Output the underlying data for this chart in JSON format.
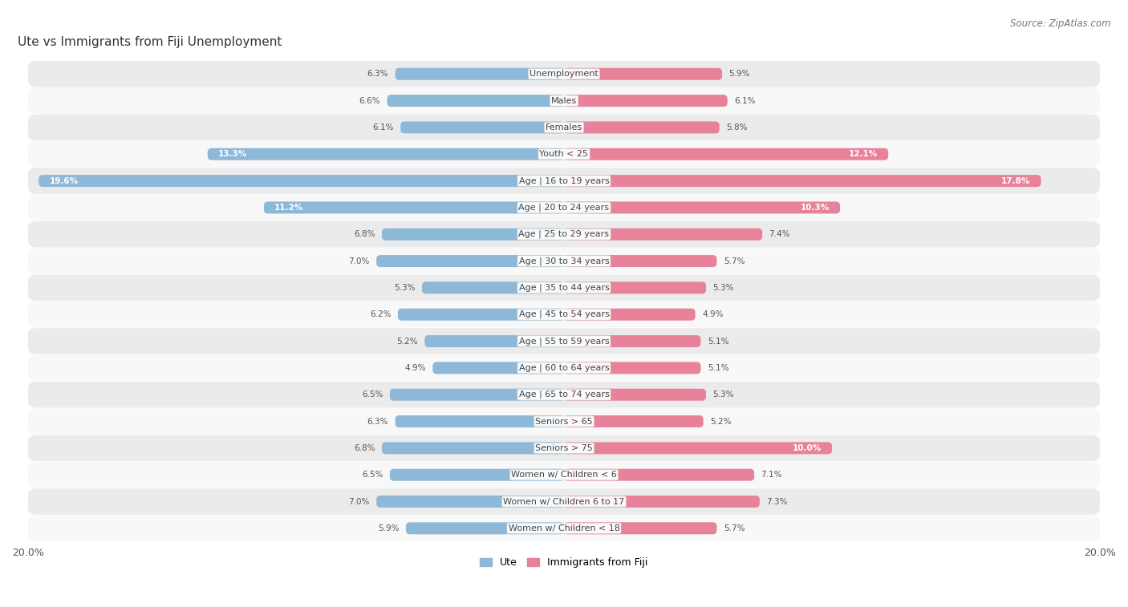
{
  "title": "Ute vs Immigrants from Fiji Unemployment",
  "source": "Source: ZipAtlas.com",
  "categories": [
    "Unemployment",
    "Males",
    "Females",
    "Youth < 25",
    "Age | 16 to 19 years",
    "Age | 20 to 24 years",
    "Age | 25 to 29 years",
    "Age | 30 to 34 years",
    "Age | 35 to 44 years",
    "Age | 45 to 54 years",
    "Age | 55 to 59 years",
    "Age | 60 to 64 years",
    "Age | 65 to 74 years",
    "Seniors > 65",
    "Seniors > 75",
    "Women w/ Children < 6",
    "Women w/ Children 6 to 17",
    "Women w/ Children < 18"
  ],
  "ute_values": [
    6.3,
    6.6,
    6.1,
    13.3,
    19.6,
    11.2,
    6.8,
    7.0,
    5.3,
    6.2,
    5.2,
    4.9,
    6.5,
    6.3,
    6.8,
    6.5,
    7.0,
    5.9
  ],
  "fiji_values": [
    5.9,
    6.1,
    5.8,
    12.1,
    17.8,
    10.3,
    7.4,
    5.7,
    5.3,
    4.9,
    5.1,
    5.1,
    5.3,
    5.2,
    10.0,
    7.1,
    7.3,
    5.7
  ],
  "ute_color": "#8db8d8",
  "fiji_color": "#e8829a",
  "ute_label": "Ute",
  "fiji_label": "Immigrants from Fiji",
  "axis_max": 20.0,
  "background_color": "#ffffff",
  "row_color_odd": "#e8e8e8",
  "row_color_even": "#f5f5f5",
  "title_fontsize": 11,
  "source_fontsize": 8.5,
  "label_fontsize": 8,
  "value_fontsize": 7.5,
  "bar_height": 0.45
}
